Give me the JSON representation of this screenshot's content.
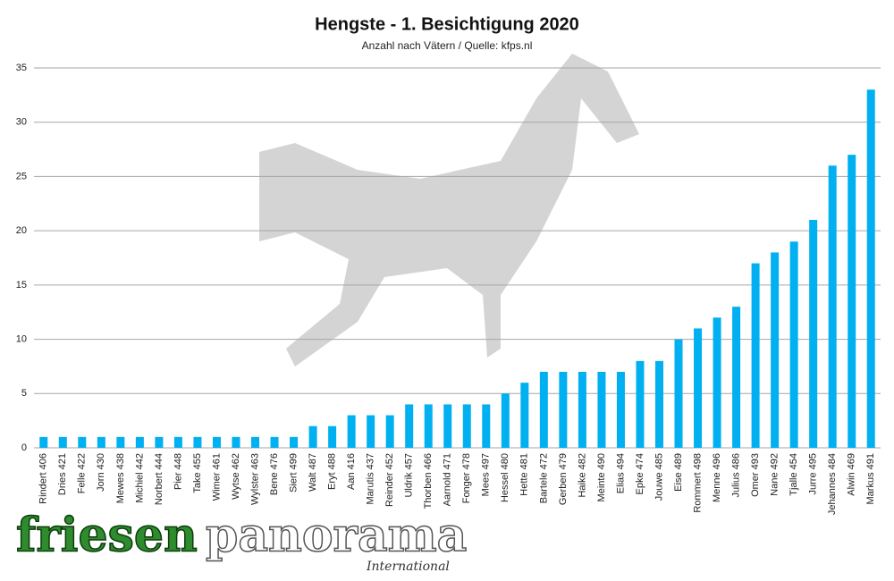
{
  "chart_data": {
    "type": "bar",
    "title": "Hengste - 1. Besichtigung 2020",
    "subtitle": "Anzahl nach Vätern / Quelle:  kfps.nl",
    "categories": [
      "Rindert 406",
      "Dries 421",
      "Felle 422",
      "Jorn 430",
      "Mewes 438",
      "Michiel 442",
      "Norbert 444",
      "Pier 448",
      "Take 455",
      "Wimer 461",
      "Wytse 462",
      "Wylster 463",
      "Bene 476",
      "Siert 499",
      "Walt 487",
      "Eryt 488",
      "Aan 416",
      "Marutis 437",
      "Reinder 452",
      "Uldrik 457",
      "Thorben 466",
      "Aarnold 471",
      "Fonger 478",
      "Mees 497",
      "Hessel 480",
      "Hette 481",
      "Bartele 472",
      "Gerben 479",
      "Haike 482",
      "Meinte 490",
      "Elias 494",
      "Epke 474",
      "Jouwe 485",
      "Eise 489",
      "Rommert 498",
      "Menne 496",
      "Julius 486",
      "Omer 493",
      "Nane 492",
      "Tjalle 454",
      "Jurre 495",
      "Jehannes 484",
      "Alwin 469",
      "Markus 491"
    ],
    "values": [
      1,
      1,
      1,
      1,
      1,
      1,
      1,
      1,
      1,
      1,
      1,
      1,
      1,
      1,
      2,
      2,
      3,
      3,
      3,
      4,
      4,
      4,
      4,
      4,
      5,
      6,
      7,
      7,
      7,
      7,
      7,
      8,
      8,
      10,
      11,
      12,
      13,
      17,
      18,
      19,
      21,
      26,
      27,
      33
    ],
    "color": "#00b0f0",
    "ylim": [
      0,
      35
    ],
    "yticks": [
      0,
      5,
      10,
      15,
      20,
      25,
      30,
      35
    ],
    "grid": true
  },
  "logo": {
    "word1": "friesen",
    "word2": "panorama",
    "tagline": "International"
  }
}
